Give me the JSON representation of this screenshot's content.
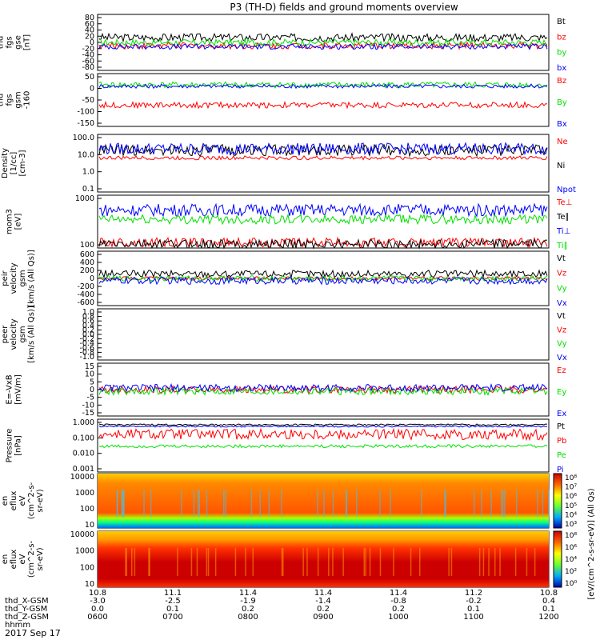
{
  "title": "P3 (TH-D) fields and ground moments overview",
  "date": "2017 Sep 17",
  "colors": {
    "black": "#000000",
    "red": "#ff0000",
    "green": "#00e000",
    "blue": "#0000ff",
    "yellow": "#ffff00"
  },
  "chart_data": [
    {
      "type": "line",
      "id": "p1",
      "ylabel": [
        "thd",
        "fgs",
        "gse",
        "[nT]"
      ],
      "ylim": [
        -80,
        90
      ],
      "ticks": [
        "80",
        "60",
        "40",
        "20",
        "0",
        "-20",
        "-40",
        "-60",
        "-80"
      ],
      "series": [
        {
          "name": "Bt",
          "color": "black",
          "base": 20,
          "amp": 12
        },
        {
          "name": "bz",
          "color": "red",
          "base": -5,
          "amp": 10
        },
        {
          "name": "by",
          "color": "green",
          "base": 5,
          "amp": 10
        },
        {
          "name": "bx",
          "color": "blue",
          "base": -8,
          "amp": 8
        }
      ]
    },
    {
      "type": "line",
      "id": "p2",
      "ylabel": [
        "thd",
        "fgs",
        "gsm",
        "-160"
      ],
      "ylim": [
        -160,
        50
      ],
      "ticks": [
        "50",
        "0",
        "-50",
        "-100",
        "-150"
      ],
      "series": [
        {
          "name": "Bz",
          "color": "red",
          "base": -75,
          "amp": 12
        },
        {
          "name": "By",
          "color": "green",
          "base": 5,
          "amp": 12
        },
        {
          "name": "Bx",
          "color": "blue",
          "base": 0,
          "amp": 8
        }
      ]
    },
    {
      "type": "line",
      "id": "p3",
      "ylabel": [
        "Density",
        "[1/cc]",
        "[cm-3]"
      ],
      "ylim": [
        0.1,
        100
      ],
      "log": true,
      "ticks": [
        "100.0",
        "10.0",
        "1.0",
        "0.1"
      ],
      "series": [
        {
          "name": "Ne",
          "color": "red",
          "base": 6,
          "amp": 0.1
        },
        {
          "name": "Ni",
          "color": "black",
          "base": 15,
          "amp": 0.3
        },
        {
          "name": "Npot",
          "color": "blue",
          "base": 18,
          "amp": 0.3
        }
      ]
    },
    {
      "type": "line",
      "id": "p4",
      "ylabel": [
        "mom3",
        "[eV]"
      ],
      "ylim": [
        60,
        3000
      ],
      "log": true,
      "ticks": [
        "1000",
        "100"
      ],
      "series": [
        {
          "name": "Te⊥",
          "color": "red",
          "base": 90,
          "amp": 0.15
        },
        {
          "name": "Te∥",
          "color": "black",
          "base": 80,
          "amp": 0.15
        },
        {
          "name": "Ti⊥",
          "color": "blue",
          "base": 1000,
          "amp": 0.2
        },
        {
          "name": "Ti∥",
          "color": "green",
          "base": 500,
          "amp": 0.15
        }
      ]
    },
    {
      "type": "line",
      "id": "p5",
      "ylabel": [
        "thd",
        "peir",
        "velocity",
        "gsm",
        "[km/s (All Qs)]"
      ],
      "ylim": [
        -600,
        600
      ],
      "ticks": [
        "600",
        "400",
        "200",
        "0",
        "-200",
        "-400",
        "-600"
      ],
      "series": [
        {
          "name": "Vt",
          "color": "black",
          "base": 100,
          "amp": 80
        },
        {
          "name": "Vz",
          "color": "red",
          "base": 0,
          "amp": 40
        },
        {
          "name": "Vy",
          "color": "green",
          "base": 0,
          "amp": 60
        },
        {
          "name": "Vx",
          "color": "blue",
          "base": -50,
          "amp": 80
        }
      ]
    },
    {
      "type": "line",
      "id": "p6",
      "ylabel": [
        "thd",
        "peer",
        "velocity",
        "gsm",
        "[km/s (All Qs)]"
      ],
      "ylim": [
        -1,
        1
      ],
      "ticks": [
        "1.0",
        "0.8",
        "0.6",
        "0.4",
        "0.2",
        "0.0",
        "-0.2",
        "-0.4",
        "-0.6",
        "-0.8",
        "-1.0"
      ],
      "series": [
        {
          "name": "Vt",
          "color": "black"
        },
        {
          "name": "Vz",
          "color": "red"
        },
        {
          "name": "Vy",
          "color": "green"
        },
        {
          "name": "Vx",
          "color": "blue"
        }
      ]
    },
    {
      "type": "line",
      "id": "p7",
      "ylabel": [
        "E=-VxB",
        "[mV/m]"
      ],
      "ylim": [
        -15,
        15
      ],
      "ticks": [
        "15",
        "10",
        "5",
        "0",
        "-5",
        "-10",
        "-15"
      ],
      "series": [
        {
          "name": "Ez",
          "color": "red",
          "base": 0,
          "amp": 2
        },
        {
          "name": "Ey",
          "color": "green",
          "base": -1,
          "amp": 2
        },
        {
          "name": "Ex",
          "color": "blue",
          "base": 1,
          "amp": 2
        }
      ]
    },
    {
      "type": "line",
      "id": "p8",
      "ylabel": [
        "Pressure",
        "[nPa]"
      ],
      "ylim": [
        0.001,
        3
      ],
      "log": true,
      "ticks": [
        "1.000",
        "0.100",
        "0.010",
        "0.001"
      ],
      "series": [
        {
          "name": "Pt",
          "color": "black",
          "base": 1.3,
          "amp": 0.05
        },
        {
          "name": "Pb",
          "color": "red",
          "base": 0.3,
          "amp": 0.35
        },
        {
          "name": "Pe",
          "color": "green",
          "base": 0.05,
          "amp": 0.1
        },
        {
          "name": "Pi",
          "color": "blue",
          "base": 1.0,
          "amp": 0.05
        }
      ]
    },
    {
      "type": "heatmap",
      "id": "p9",
      "ylabel": [
        "thd",
        "peir",
        "en",
        "eflux",
        "eV",
        "(cm^2-s-",
        "sr-eV)"
      ],
      "ticks": [
        "10000",
        "1000",
        "100",
        "10"
      ],
      "zlim": [
        "10^3",
        "10^8"
      ],
      "zticks": [
        "10⁸",
        "10⁷",
        "10⁶",
        "10⁵",
        "10⁴",
        "10³"
      ]
    },
    {
      "type": "heatmap",
      "id": "p10",
      "ylabel": [
        "thd",
        "peer",
        "en",
        "eflux",
        "eV",
        "(cm^2-s-",
        "sr-eV)"
      ],
      "ticks": [
        "10000",
        "1000",
        "100",
        "10"
      ],
      "zlim": [
        "10^0",
        "10^8"
      ],
      "zticks": [
        "10⁸",
        "10⁶",
        "10⁴",
        "10²",
        "10⁰"
      ]
    }
  ],
  "colorbar_label": "[eV/(cm^2-s-sr-eV)] (All Qs)",
  "xaxis": {
    "rows": [
      {
        "label": "",
        "values": [
          "10.8",
          "11.1",
          "11.4",
          "11.4",
          "11.4",
          "11.2",
          "10.8"
        ]
      },
      {
        "label": "thd_X-GSM",
        "values": [
          "-3.0",
          "-2.5",
          "-1.9",
          "-1.4",
          "-0.8",
          "-0.2",
          "0.4"
        ]
      },
      {
        "label": "thd_Y-GSM",
        "values": [
          "0.0",
          "0.1",
          "0.2",
          "0.2",
          "0.2",
          "0.1",
          "0.1"
        ]
      },
      {
        "label": "thd_Z-GSM",
        "values": [
          "0600",
          "0700",
          "0800",
          "0900",
          "1000",
          "1100",
          "1200"
        ]
      },
      {
        "label": "hhmm",
        "values": []
      }
    ]
  }
}
